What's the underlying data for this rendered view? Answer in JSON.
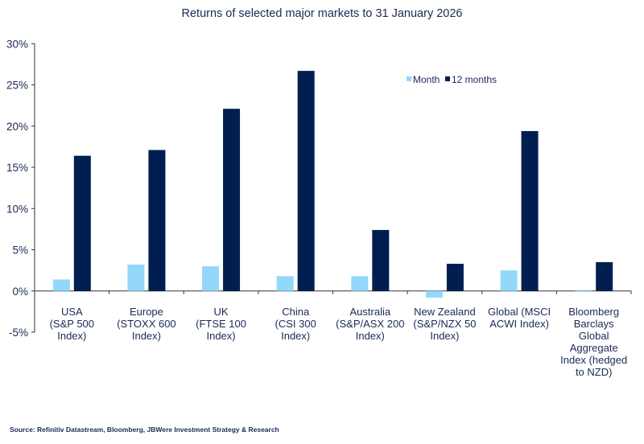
{
  "chart_data": {
    "type": "bar",
    "title": "Returns of selected major markets to 31 January 2026",
    "categories": [
      [
        "USA",
        "(S&P 500",
        "Index)"
      ],
      [
        "Europe",
        "(STOXX 600",
        "Index)"
      ],
      [
        "UK",
        "(FTSE 100",
        "Index)"
      ],
      [
        "China",
        "(CSI 300",
        "Index)"
      ],
      [
        "Australia",
        "(S&P/ASX 200",
        "Index)"
      ],
      [
        "New Zealand",
        "(S&P/NZX 50",
        "Index)"
      ],
      [
        "Global (MSCI",
        "ACWI Index)"
      ],
      [
        "Bloomberg",
        "Barclays",
        "Global",
        "Aggregate",
        "Index (hedged",
        "to NZD)"
      ]
    ],
    "series": [
      {
        "name": "Month",
        "color": "#93d8fb",
        "values": [
          1.4,
          3.2,
          3.0,
          1.8,
          1.8,
          -0.8,
          2.5,
          0.1
        ]
      },
      {
        "name": "12 months",
        "color": "#001e50",
        "values": [
          16.4,
          17.1,
          22.1,
          26.7,
          7.4,
          3.3,
          19.4,
          3.5
        ]
      }
    ],
    "ylim": [
      -5,
      30
    ],
    "yticks": [
      -5,
      0,
      5,
      10,
      15,
      20,
      25,
      30
    ],
    "ytick_format": "%",
    "legend": "top-right",
    "grid": false
  },
  "source": "Source: Refinitiv Datastream, Bloomberg, JBWere Investment Strategy & Research"
}
